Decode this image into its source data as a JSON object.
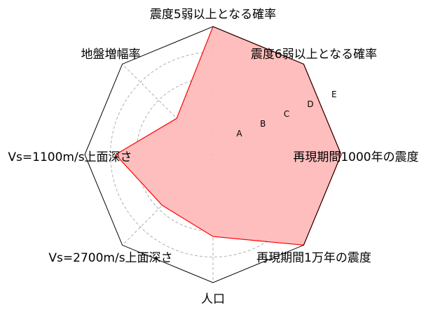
{
  "chart_data": {
    "type": "radar",
    "axes": [
      "震度5弱以上となる確率",
      "震度6弱以上となる確率",
      "再現期間1000年の震度",
      "再現期間1万年の震度",
      "人口",
      "Vs=2700m/s上面深さ",
      "Vs=1100m/s上面深さ",
      "地盤増幅率"
    ],
    "values": [
      5.0,
      5.0,
      5.0,
      5.0,
      3.2,
      2.8,
      3.8,
      2.0
    ],
    "rlim": [
      0,
      5
    ],
    "ticks": [
      {
        "value": 1,
        "label": "A"
      },
      {
        "value": 2,
        "label": "B"
      },
      {
        "value": 3,
        "label": "C"
      },
      {
        "value": 4,
        "label": "D"
      },
      {
        "value": 5,
        "label": "E"
      }
    ],
    "grid": true,
    "colors": {
      "fill": "#ffbbbb",
      "line": "#ff0000",
      "grid": "#b0b0b0",
      "frame": "#000000"
    }
  }
}
